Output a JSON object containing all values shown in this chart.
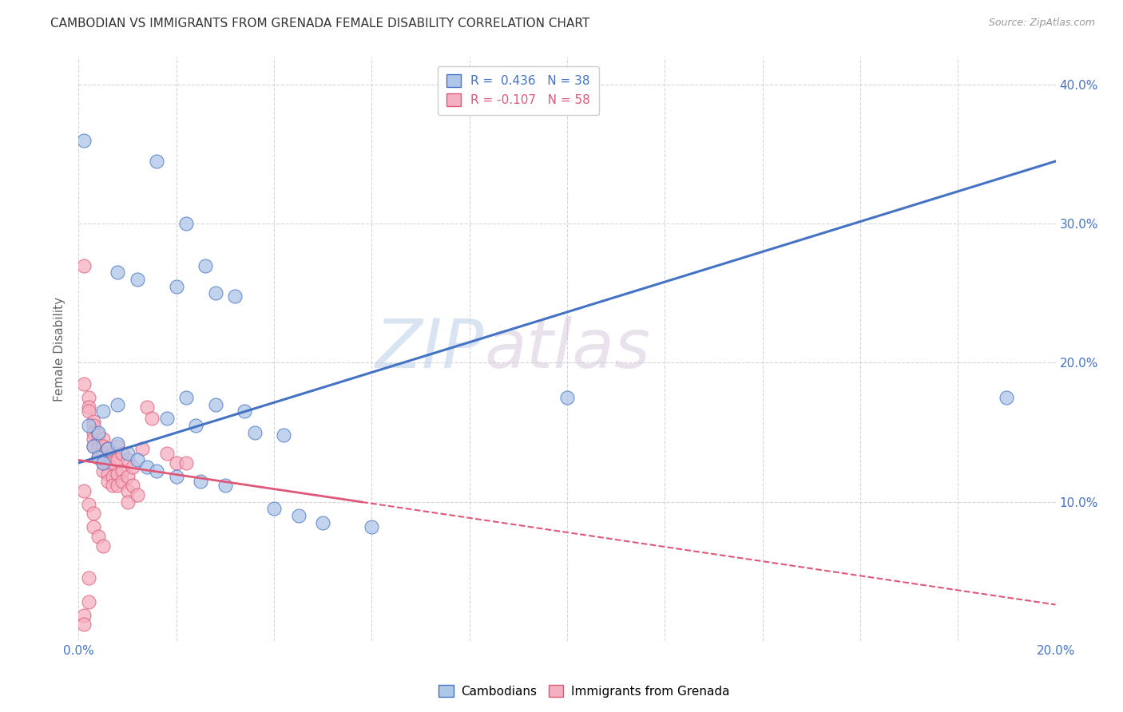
{
  "title": "CAMBODIAN VS IMMIGRANTS FROM GRENADA FEMALE DISABILITY CORRELATION CHART",
  "source": "Source: ZipAtlas.com",
  "ylabel": "Female Disability",
  "xlim": [
    0.0,
    0.2
  ],
  "ylim": [
    0.0,
    0.42
  ],
  "x_ticks": [
    0.0,
    0.02,
    0.04,
    0.06,
    0.08,
    0.1,
    0.12,
    0.14,
    0.16,
    0.18,
    0.2
  ],
  "y_ticks": [
    0.0,
    0.1,
    0.2,
    0.3,
    0.4
  ],
  "legend_r1": "R =  0.436   N = 38",
  "legend_r2": "R = -0.107   N = 58",
  "cambodian_color": "#aec6e8",
  "grenada_color": "#f4afc0",
  "cambodian_line_color": "#4472c4",
  "grenada_line_color": "#e05878",
  "cam_line_x0": 0.0,
  "cam_line_y0": 0.128,
  "cam_line_x1": 0.2,
  "cam_line_y1": 0.345,
  "gren_line_x0": 0.0,
  "gren_line_y0": 0.13,
  "gren_line_x1": 0.2,
  "gren_line_y1": 0.026,
  "cambodian_scatter": [
    [
      0.001,
      0.36
    ],
    [
      0.016,
      0.345
    ],
    [
      0.022,
      0.3
    ],
    [
      0.026,
      0.27
    ],
    [
      0.008,
      0.265
    ],
    [
      0.012,
      0.26
    ],
    [
      0.02,
      0.255
    ],
    [
      0.028,
      0.25
    ],
    [
      0.032,
      0.248
    ],
    [
      0.022,
      0.175
    ],
    [
      0.028,
      0.17
    ],
    [
      0.034,
      0.165
    ],
    [
      0.018,
      0.16
    ],
    [
      0.024,
      0.155
    ],
    [
      0.036,
      0.15
    ],
    [
      0.042,
      0.148
    ],
    [
      0.005,
      0.165
    ],
    [
      0.008,
      0.17
    ],
    [
      0.004,
      0.15
    ],
    [
      0.002,
      0.155
    ],
    [
      0.003,
      0.14
    ],
    [
      0.004,
      0.132
    ],
    [
      0.005,
      0.128
    ],
    [
      0.006,
      0.138
    ],
    [
      0.008,
      0.142
    ],
    [
      0.01,
      0.135
    ],
    [
      0.012,
      0.13
    ],
    [
      0.014,
      0.125
    ],
    [
      0.016,
      0.122
    ],
    [
      0.02,
      0.118
    ],
    [
      0.025,
      0.115
    ],
    [
      0.03,
      0.112
    ],
    [
      0.04,
      0.095
    ],
    [
      0.045,
      0.09
    ],
    [
      0.05,
      0.085
    ],
    [
      0.06,
      0.082
    ],
    [
      0.1,
      0.175
    ],
    [
      0.19,
      0.175
    ]
  ],
  "grenada_scatter": [
    [
      0.001,
      0.27
    ],
    [
      0.001,
      0.185
    ],
    [
      0.002,
      0.175
    ],
    [
      0.002,
      0.168
    ],
    [
      0.002,
      0.165
    ],
    [
      0.003,
      0.158
    ],
    [
      0.003,
      0.155
    ],
    [
      0.003,
      0.15
    ],
    [
      0.003,
      0.145
    ],
    [
      0.003,
      0.14
    ],
    [
      0.004,
      0.148
    ],
    [
      0.004,
      0.142
    ],
    [
      0.004,
      0.138
    ],
    [
      0.004,
      0.132
    ],
    [
      0.005,
      0.145
    ],
    [
      0.005,
      0.14
    ],
    [
      0.005,
      0.135
    ],
    [
      0.005,
      0.128
    ],
    [
      0.005,
      0.122
    ],
    [
      0.006,
      0.138
    ],
    [
      0.006,
      0.132
    ],
    [
      0.006,
      0.128
    ],
    [
      0.006,
      0.12
    ],
    [
      0.006,
      0.115
    ],
    [
      0.007,
      0.135
    ],
    [
      0.007,
      0.128
    ],
    [
      0.007,
      0.118
    ],
    [
      0.007,
      0.112
    ],
    [
      0.008,
      0.14
    ],
    [
      0.008,
      0.13
    ],
    [
      0.008,
      0.12
    ],
    [
      0.008,
      0.112
    ],
    [
      0.009,
      0.135
    ],
    [
      0.009,
      0.122
    ],
    [
      0.009,
      0.115
    ],
    [
      0.01,
      0.13
    ],
    [
      0.01,
      0.118
    ],
    [
      0.01,
      0.108
    ],
    [
      0.01,
      0.1
    ],
    [
      0.011,
      0.125
    ],
    [
      0.011,
      0.112
    ],
    [
      0.012,
      0.105
    ],
    [
      0.013,
      0.138
    ],
    [
      0.014,
      0.168
    ],
    [
      0.015,
      0.16
    ],
    [
      0.018,
      0.135
    ],
    [
      0.02,
      0.128
    ],
    [
      0.022,
      0.128
    ],
    [
      0.001,
      0.108
    ],
    [
      0.002,
      0.098
    ],
    [
      0.003,
      0.092
    ],
    [
      0.003,
      0.082
    ],
    [
      0.004,
      0.075
    ],
    [
      0.005,
      0.068
    ],
    [
      0.002,
      0.045
    ],
    [
      0.002,
      0.028
    ],
    [
      0.001,
      0.018
    ],
    [
      0.001,
      0.012
    ]
  ],
  "watermark_zip": "ZIP",
  "watermark_atlas": "atlas",
  "background_color": "#ffffff",
  "grid_color": "#cccccc"
}
